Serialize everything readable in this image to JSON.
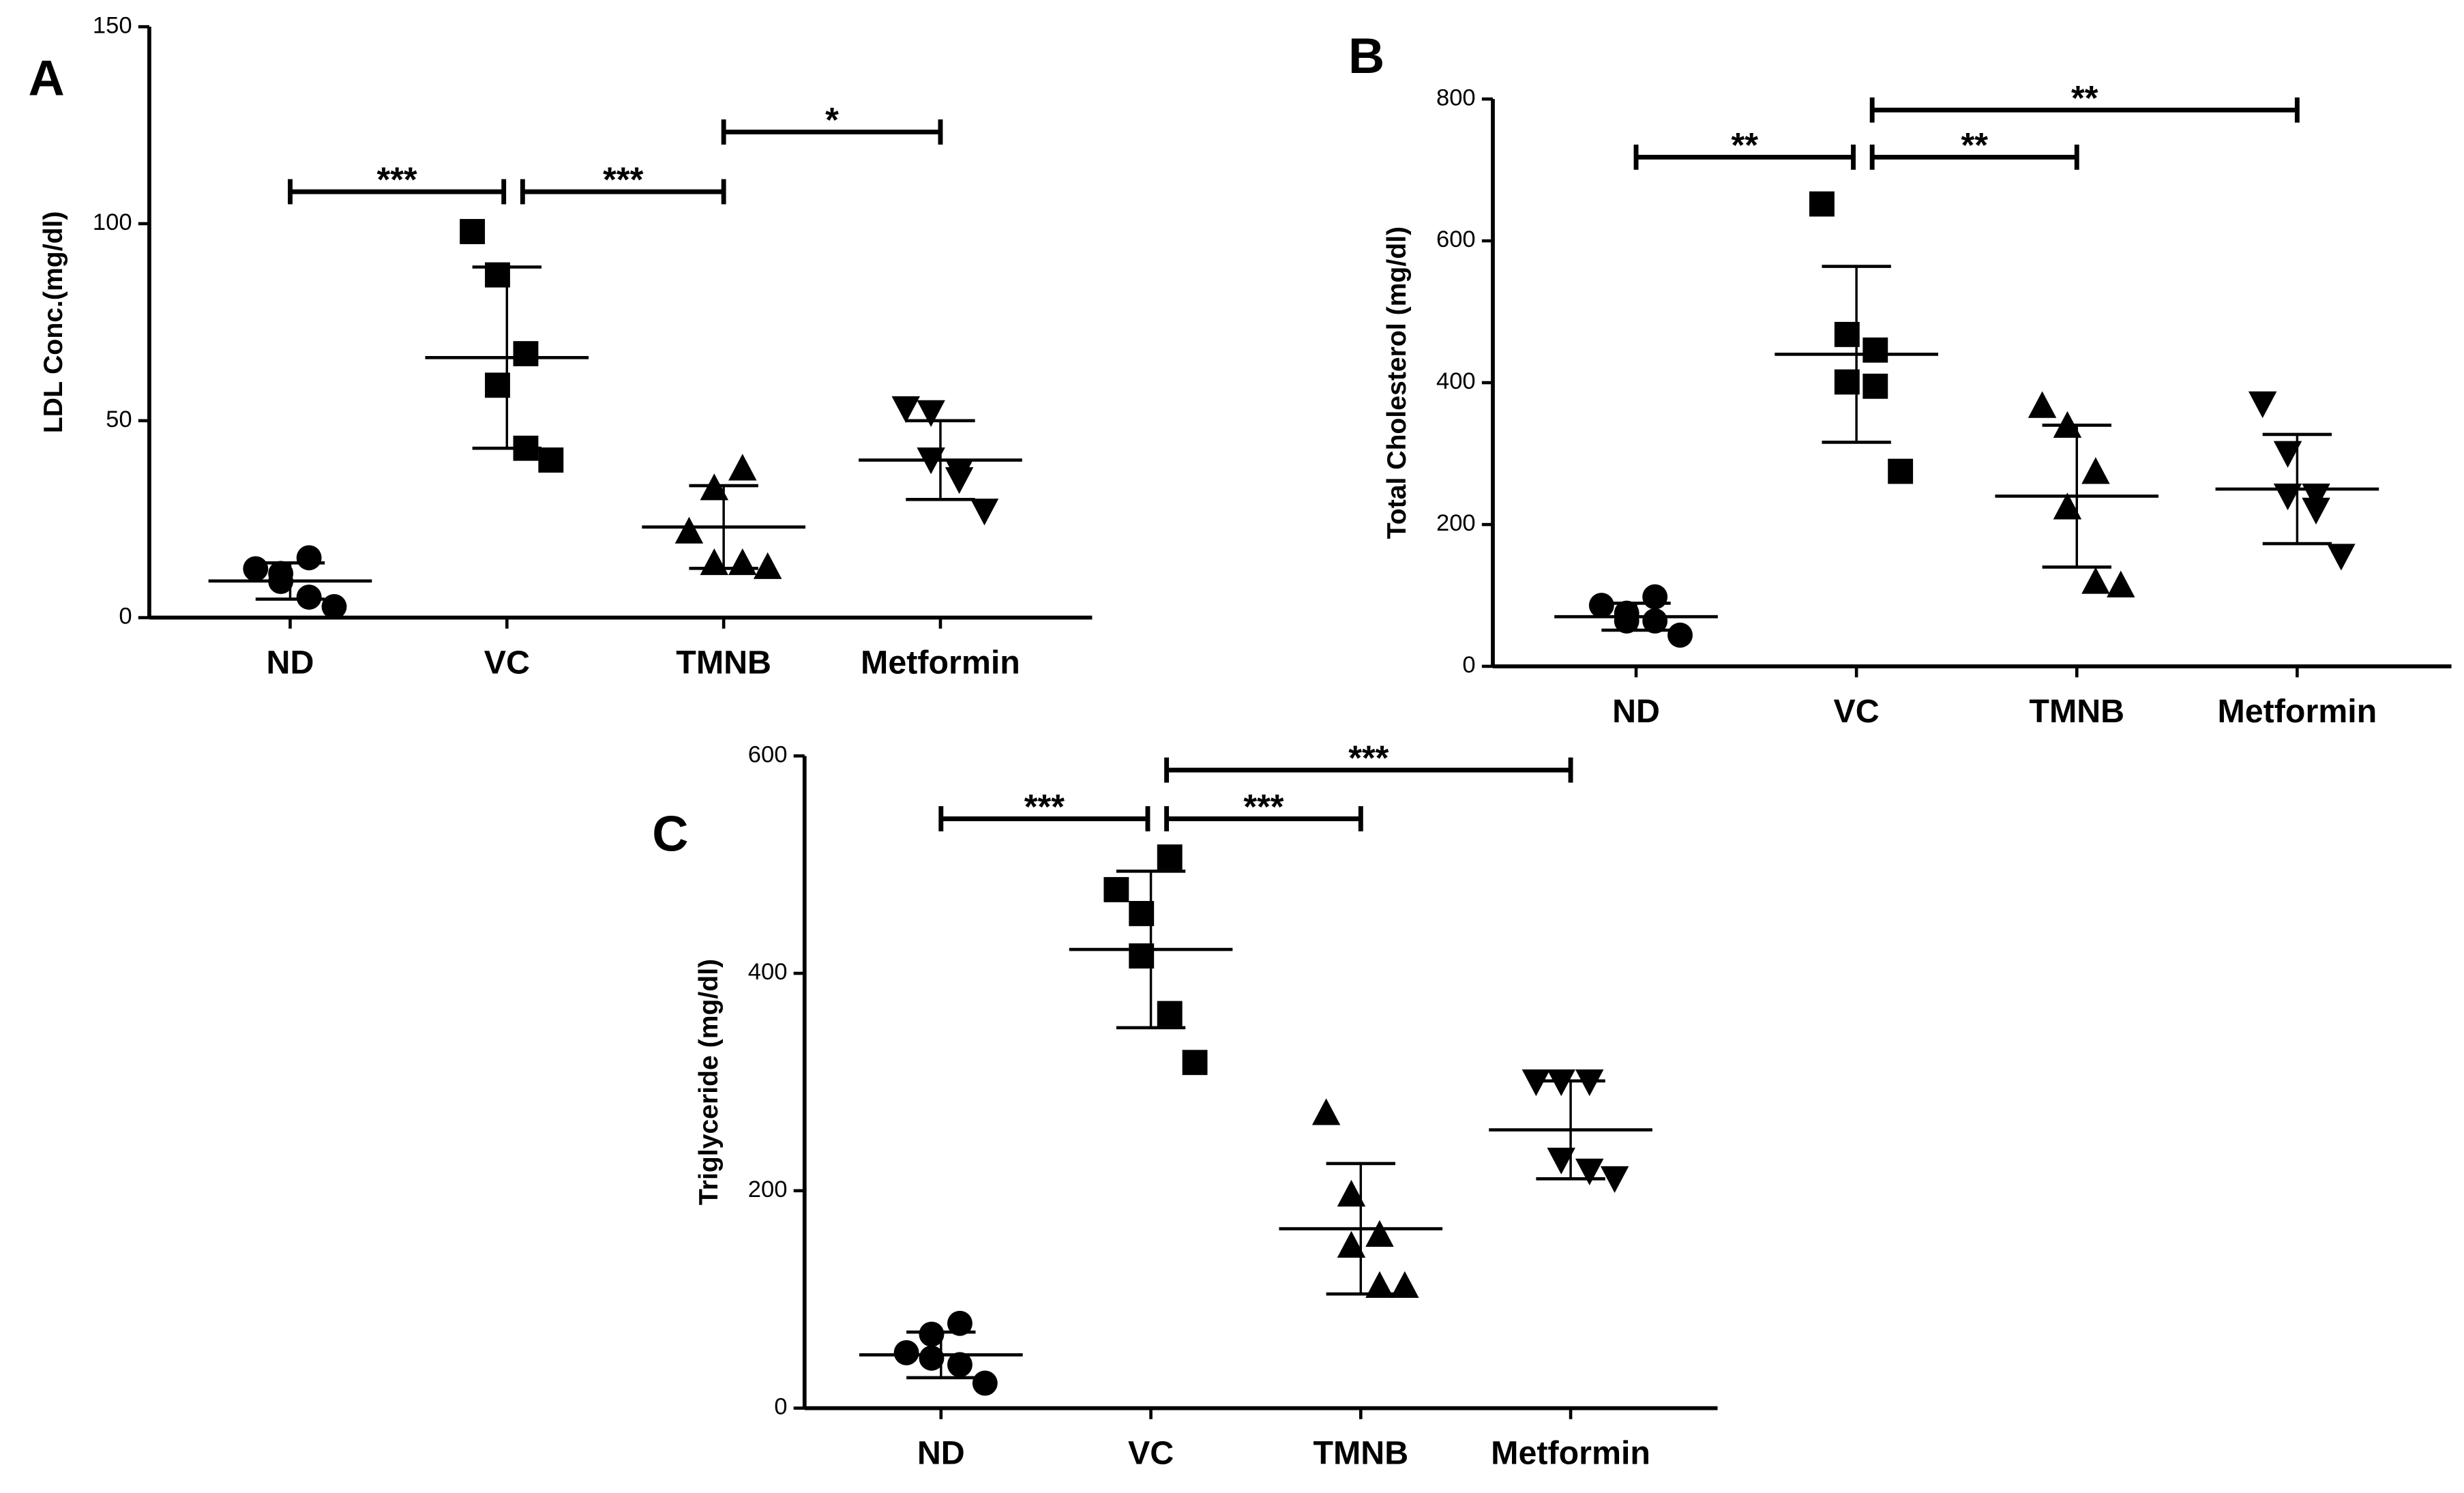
{
  "chart_data": [
    {
      "type": "dot",
      "title": "A",
      "y_label": "LDL Conc.(mg/dl)",
      "categories": [
        "ND",
        "VC",
        "TMNB",
        "Metformin"
      ],
      "markers": [
        "circle",
        "square",
        "triangle",
        "triangle-down"
      ],
      "color": "#000000",
      "points": [
        [
          12.4,
          11.2,
          15.2,
          9.2,
          5.2,
          2.8
        ],
        [
          98,
          87,
          67,
          59,
          43,
          40
        ],
        [
          22,
          33,
          38,
          14,
          14,
          13
        ],
        [
          53,
          52,
          35,
          40,
          37,
          27
        ]
      ],
      "mean": [
        9.3,
        66,
        23,
        40
      ],
      "sd": [
        4.6,
        23,
        10.5,
        10
      ],
      "ylim": [
        0,
        150
      ],
      "yticks": [
        0,
        50,
        100,
        150
      ],
      "comparisons": [
        {
          "from": "ND",
          "to": "VC",
          "label": "***"
        },
        {
          "from": "VC",
          "to": "TMNB",
          "label": "***"
        },
        {
          "from": "TMNB",
          "to": "Metformin",
          "label": "*"
        }
      ]
    },
    {
      "type": "dot",
      "title": "B",
      "y_label": "Total Cholesterol (mg/dl)",
      "categories": [
        "ND",
        "VC",
        "TMNB",
        "Metformin"
      ],
      "markers": [
        "circle",
        "square",
        "triangle",
        "triangle-down"
      ],
      "color": "#000000",
      "points": [
        [
          86,
          75,
          98,
          64,
          64,
          44
        ],
        [
          652,
          468,
          446,
          401,
          395,
          275
        ],
        [
          368,
          340,
          275,
          225,
          120,
          115
        ],
        [
          370,
          300,
          240,
          240,
          220,
          155
        ]
      ],
      "mean": [
        70,
        440,
        240,
        250
      ],
      "sd": [
        19,
        124,
        100,
        77
      ],
      "ylim": [
        0,
        800
      ],
      "yticks": [
        0,
        200,
        400,
        600,
        800
      ],
      "comparisons": [
        {
          "from": "ND",
          "to": "VC",
          "label": "**"
        },
        {
          "from": "VC",
          "to": "TMNB",
          "label": "**"
        },
        {
          "from": "VC",
          "to": "Metformin",
          "label": "**"
        }
      ]
    },
    {
      "type": "dot",
      "title": "C",
      "y_label": "Triglyceride (mg/dl)",
      "categories": [
        "ND",
        "VC",
        "TMNB",
        "Metformin"
      ],
      "markers": [
        "circle",
        "square",
        "triangle",
        "triangle-down"
      ],
      "color": "#000000",
      "points": [
        [
          51,
          68,
          78,
          46,
          40,
          23
        ],
        [
          477,
          455,
          507,
          416,
          363,
          318
        ],
        [
          272,
          197,
          160,
          150,
          113,
          113
        ],
        [
          300,
          300,
          300,
          228,
          218,
          211
        ]
      ],
      "mean": [
        49,
        422,
        165,
        256
      ],
      "sd": [
        21,
        72,
        60,
        45
      ],
      "ylim": [
        0,
        600
      ],
      "yticks": [
        0,
        200,
        400,
        600
      ],
      "comparisons": [
        {
          "from": "ND",
          "to": "VC",
          "label": "***"
        },
        {
          "from": "VC",
          "to": "TMNB",
          "label": "***"
        },
        {
          "from": "VC",
          "to": "Metformin",
          "label": "***"
        }
      ]
    }
  ]
}
